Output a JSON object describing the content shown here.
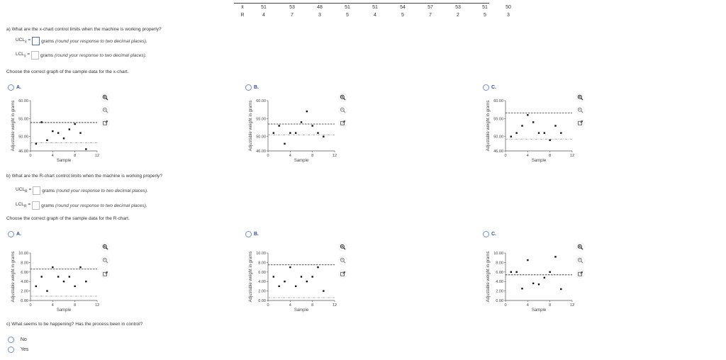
{
  "data_table": {
    "rows": [
      {
        "label": "x̄",
        "values": [
          51,
          53,
          48,
          51,
          51,
          54,
          57,
          53,
          51,
          50
        ]
      },
      {
        "label": "R",
        "values": [
          4,
          7,
          3,
          5,
          4,
          5,
          7,
          2,
          5,
          3
        ]
      }
    ]
  },
  "part_a": {
    "question": "a) What are the x-chart control limits when the machine is working properly?",
    "ucl_label": "UCL",
    "ucl_sub": "x̄",
    "lcl_label": "LCL",
    "lcl_sub": "x̄",
    "eq": "=",
    "ucl_value": "",
    "lcl_value": "",
    "units": "grams",
    "hint": "(round your response to two decimal places).",
    "choose": "Choose the correct graph of the sample data for the x-chart."
  },
  "part_b": {
    "question": "b) What are the R-chart control limits when the machine is working properly?",
    "ucl_label": "UCL",
    "ucl_sub": "R",
    "lcl_label": "LCL",
    "lcl_sub": "R",
    "eq": "=",
    "ucl_value": "",
    "lcl_value": "",
    "units": "grams",
    "hint": "(round your response to two decimal places).",
    "choose": "Choose the correct graph of the sample data for the R-chart."
  },
  "part_c": {
    "question": "c) What seems to be happening? Has the process been in control?",
    "options": [
      "No",
      "Yes"
    ]
  },
  "chart_common": {
    "xlabel": "Sample",
    "ylabel": "Adjustable weight in grams",
    "x_ticks": [
      "0",
      "4",
      "8",
      "12"
    ]
  },
  "chart_data": [
    {
      "id": "xbar-A",
      "option": "A.",
      "type": "scatter",
      "xlabel": "Sample",
      "ylabel": "Adjustable weight in grams",
      "xlim": [
        0,
        12
      ],
      "ylim": [
        46,
        60
      ],
      "y_ticks": [
        "60.00",
        "55.00",
        "50.00",
        "46.00"
      ],
      "x": [
        1,
        2,
        3,
        4,
        5,
        6,
        7,
        8,
        9,
        10
      ],
      "y": [
        48,
        54,
        49,
        51.5,
        51,
        49.5,
        52,
        53.5,
        51,
        46.5
      ],
      "ucl": 53.9,
      "lcl": 48.3
    },
    {
      "id": "xbar-B",
      "option": "B.",
      "type": "scatter",
      "xlabel": "Sample",
      "ylabel": "Adjustable weight in grams",
      "xlim": [
        0,
        12
      ],
      "ylim": [
        46,
        60
      ],
      "y_ticks": [
        "60.00",
        "55.00",
        "50.00",
        "46.00"
      ],
      "x": [
        1,
        2,
        3,
        4,
        5,
        6,
        7,
        8,
        9,
        10
      ],
      "y": [
        51,
        53,
        48,
        51,
        51,
        54,
        57,
        53,
        51,
        50
      ],
      "ucl": 53.5,
      "lcl": 50.5
    },
    {
      "id": "xbar-C",
      "option": "C.",
      "type": "scatter",
      "xlabel": "Sample",
      "ylabel": "Adjustable weight in grams",
      "xlim": [
        0,
        12
      ],
      "ylim": [
        46,
        60
      ],
      "y_ticks": [
        "60.00",
        "55.00",
        "50.00",
        "46.00"
      ],
      "x": [
        1,
        2,
        3,
        4,
        5,
        6,
        7,
        8,
        9,
        10
      ],
      "y": [
        50,
        51,
        53,
        56,
        54,
        51,
        51,
        49,
        53,
        51
      ],
      "ucl": 56.6,
      "lcl": 49.3
    },
    {
      "id": "r-A",
      "option": "A.",
      "type": "scatter",
      "xlabel": "Sample",
      "ylabel": "Adjustable weight in grams",
      "xlim": [
        0,
        12
      ],
      "ylim": [
        0,
        10
      ],
      "y_ticks": [
        "10.00",
        "8.00",
        "6.00",
        "4.00",
        "2.00",
        "0.00"
      ],
      "x": [
        1,
        2,
        3,
        4,
        5,
        6,
        7,
        8,
        9,
        10
      ],
      "y": [
        3,
        5,
        2,
        7,
        5,
        4,
        5,
        3,
        7,
        4
      ],
      "ucl": 6.6,
      "lcl": 0.9
    },
    {
      "id": "r-B",
      "option": "B.",
      "type": "scatter",
      "xlabel": "Sample",
      "ylabel": "Adjustable weight in grams",
      "xlim": [
        0,
        12
      ],
      "ylim": [
        0,
        10
      ],
      "y_ticks": [
        "10.00",
        "8.00",
        "6.00",
        "4.00",
        "2.00",
        "0.00"
      ],
      "x": [
        1,
        2,
        3,
        4,
        5,
        6,
        7,
        8,
        9,
        10
      ],
      "y": [
        5,
        3,
        4,
        7,
        3,
        5,
        4,
        5,
        7,
        2
      ],
      "ucl": 7.5,
      "lcl": 0.6
    },
    {
      "id": "r-C",
      "option": "C.",
      "type": "scatter",
      "xlabel": "Sample",
      "ylabel": "Adjustable weight in grams",
      "xlim": [
        0,
        12
      ],
      "ylim": [
        0,
        10
      ],
      "y_ticks": [
        "10.00",
        "8.00",
        "6.00",
        "4.00",
        "2.00",
        "0.00"
      ],
      "x": [
        1,
        2,
        3,
        4,
        5,
        6,
        7,
        8,
        9,
        10
      ],
      "y": [
        6,
        6,
        2.5,
        8.5,
        3.6,
        3.4,
        4.8,
        6,
        9.2,
        2.4
      ],
      "ucl": 5.4,
      "lcl": null
    }
  ]
}
